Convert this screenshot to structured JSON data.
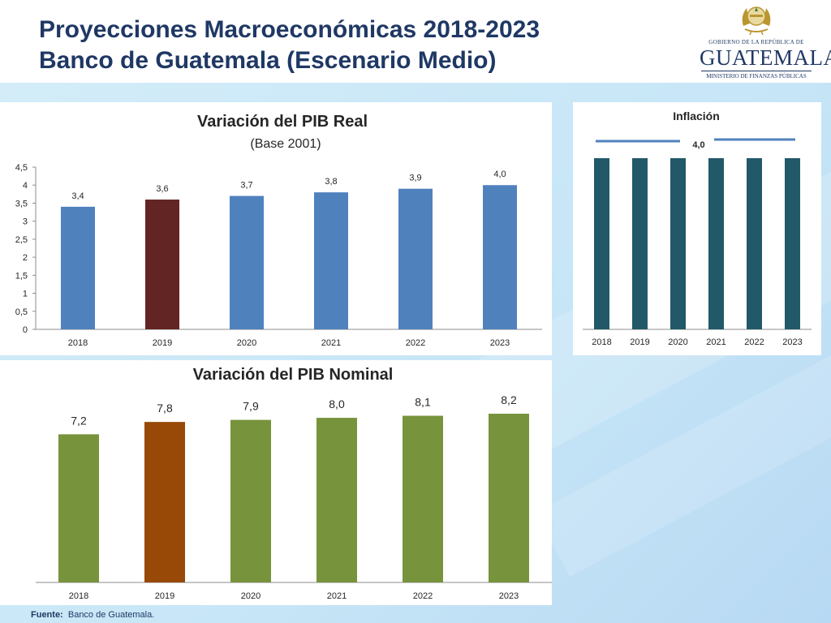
{
  "header": {
    "title_line1": "Proyecciones Macroeconómicas 2018-2023",
    "title_line2": "Banco de Guatemala (Escenario Medio)"
  },
  "logo": {
    "small_text": "GOBIERNO DE LA REPÚBLICA DE",
    "big_text": "GUATEMALA",
    "sub_text": "MINISTERIO DE FINANZAS PÚBLICAS"
  },
  "footer": {
    "label": "Fuente:",
    "text": "Banco de Guatemala."
  },
  "colors": {
    "title": "#1f3864",
    "pib_real_bar": "#4f81bd",
    "pib_real_highlight": "#632523",
    "pib_nominal_bar": "#77933c",
    "pib_nominal_highlight": "#984807",
    "inflation_bar": "#215968",
    "inflation_line": "#4f81bd"
  },
  "chart_data": [
    {
      "id": "pib_real",
      "type": "bar",
      "title": "Variación del PIB Real",
      "subtitle": "(Base 2001)",
      "categories": [
        "2018",
        "2019",
        "2020",
        "2021",
        "2022",
        "2023"
      ],
      "values": [
        3.4,
        3.6,
        3.7,
        3.8,
        3.9,
        4.0
      ],
      "data_labels": [
        "3,4",
        "3,6",
        "3,7",
        "3,8",
        "3,9",
        "4,0"
      ],
      "highlight_index": 1,
      "ylim": [
        0,
        4.5
      ],
      "yticks": [
        0,
        0.5,
        1,
        1.5,
        2,
        2.5,
        3,
        3.5,
        4,
        4.5
      ],
      "ytick_labels": [
        "0",
        "0,5",
        "1",
        "1,5",
        "2",
        "2,5",
        "3",
        "3,5",
        "4",
        "4,5"
      ],
      "grid": false
    },
    {
      "id": "inflacion",
      "type": "bar",
      "title": "Inflación",
      "categories": [
        "2018",
        "2019",
        "2020",
        "2021",
        "2022",
        "2023"
      ],
      "values": [
        4.0,
        4.0,
        4.0,
        4.0,
        4.0,
        4.0
      ],
      "reference_line": 4.0,
      "reference_label": "4,0",
      "grid": false
    },
    {
      "id": "pib_nominal",
      "type": "bar",
      "title": "Variación del PIB Nominal",
      "categories": [
        "2018",
        "2019",
        "2020",
        "2021",
        "2022",
        "2023"
      ],
      "values": [
        7.2,
        7.8,
        7.9,
        8.0,
        8.1,
        8.2
      ],
      "data_labels": [
        "7,2",
        "7,8",
        "7,9",
        "8,0",
        "8,1",
        "8,2"
      ],
      "highlight_index": 1,
      "grid": false
    }
  ]
}
